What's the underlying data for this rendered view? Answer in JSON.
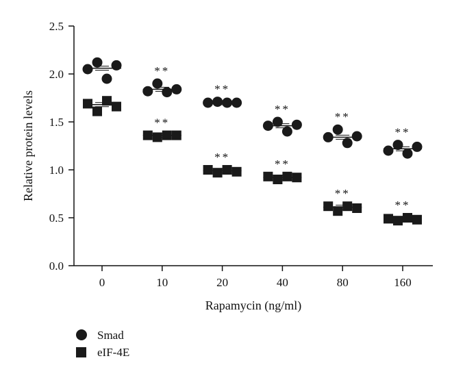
{
  "chart_data": {
    "type": "scatter",
    "title": "",
    "xlabel": "Rapamycin (ng/ml)",
    "ylabel": "Relative protein levels",
    "categories": [
      "0",
      "10",
      "20",
      "40",
      "80",
      "160"
    ],
    "ylim": [
      0,
      2.5
    ],
    "yticks": [
      "0.0",
      "0.5",
      "1.0",
      "1.5",
      "2.0",
      "2.5"
    ],
    "grid": false,
    "legend_position": "bottom-left",
    "series": [
      {
        "name": "Smad",
        "marker": "circle",
        "color": "#1a1a1a",
        "means": [
          2.06,
          1.84,
          1.7,
          1.46,
          1.34,
          1.22
        ],
        "points": [
          [
            2.05,
            2.12,
            1.95,
            2.09
          ],
          [
            1.82,
            1.9,
            1.81,
            1.84
          ],
          [
            1.7,
            1.71,
            1.7,
            1.7
          ],
          [
            1.46,
            1.5,
            1.4,
            1.47
          ],
          [
            1.34,
            1.42,
            1.28,
            1.35
          ],
          [
            1.2,
            1.26,
            1.17,
            1.24
          ]
        ],
        "significance": [
          "",
          "**",
          "**",
          "**",
          "**",
          "**"
        ]
      },
      {
        "name": "eIF-4E",
        "marker": "square",
        "color": "#1a1a1a",
        "means": [
          1.68,
          1.36,
          0.99,
          0.92,
          0.61,
          0.49
        ],
        "points": [
          [
            1.69,
            1.61,
            1.72,
            1.66
          ],
          [
            1.36,
            1.34,
            1.36,
            1.36
          ],
          [
            1.0,
            0.97,
            1.0,
            0.98
          ],
          [
            0.93,
            0.9,
            0.93,
            0.92
          ],
          [
            0.62,
            0.57,
            0.62,
            0.6
          ],
          [
            0.49,
            0.47,
            0.5,
            0.48
          ]
        ],
        "significance": [
          "",
          "**",
          "**",
          "**",
          "**",
          "**"
        ]
      }
    ]
  }
}
